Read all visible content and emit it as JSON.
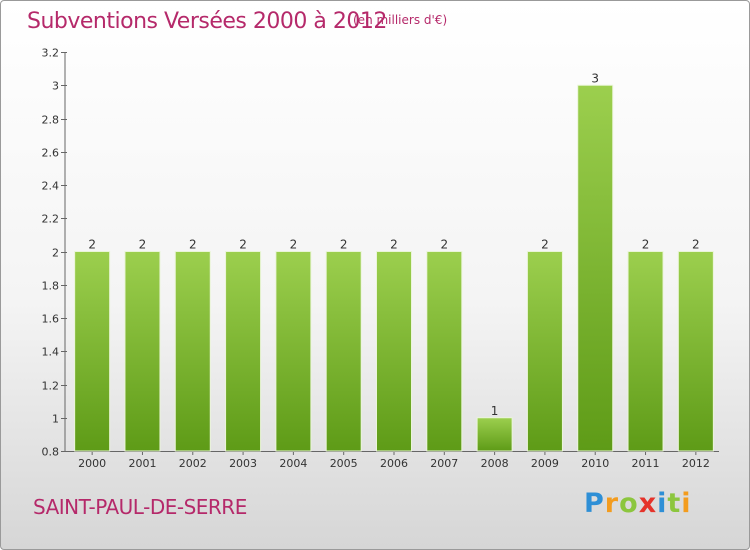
{
  "header": {
    "title": "Subventions Versées 2000 à 2012",
    "unit": "(en milliers d'€)"
  },
  "footer": {
    "commune": "SAINT-PAUL-DE-SERRE",
    "logo_letters": [
      "P",
      "r",
      "o",
      "x",
      "i",
      "t",
      "i"
    ],
    "logo_colors": [
      "#2e8fd6",
      "#f39c1e",
      "#8cc63e",
      "#e5332a",
      "#2e8fd6",
      "#8cc63e",
      "#f39c1e"
    ]
  },
  "colors": {
    "bar_light": "#9ccf4e",
    "bar_dark": "#5e9b17",
    "bar_edge": "#eaf5d8",
    "title": "#b5296a"
  },
  "chart_data": {
    "type": "bar",
    "title": "Subventions Versées 2000 à 2012",
    "subtitle": "(en milliers d'€)",
    "categories": [
      "2000",
      "2001",
      "2002",
      "2003",
      "2004",
      "2005",
      "2006",
      "2007",
      "2008",
      "2009",
      "2010",
      "2011",
      "2012"
    ],
    "values": [
      2,
      2,
      2,
      2,
      2,
      2,
      2,
      2,
      1,
      2,
      3,
      2,
      2
    ],
    "data_labels": [
      "2",
      "2",
      "2",
      "2",
      "2",
      "2",
      "2",
      "2",
      "1",
      "2",
      "3",
      "2",
      "2"
    ],
    "ylim": [
      0.8,
      3.2
    ],
    "yticks": [
      0.8,
      1,
      1.2,
      1.4,
      1.6,
      1.8,
      2,
      2.2,
      2.4,
      2.6,
      2.8,
      3,
      3.2
    ],
    "ytick_labels": [
      "0.8",
      "1",
      "1.2",
      "1.4",
      "1.6",
      "1.8",
      "2",
      "2.2",
      "2.4",
      "2.6",
      "2.8",
      "3",
      "3.2"
    ],
    "grid": false,
    "legend": "none"
  }
}
